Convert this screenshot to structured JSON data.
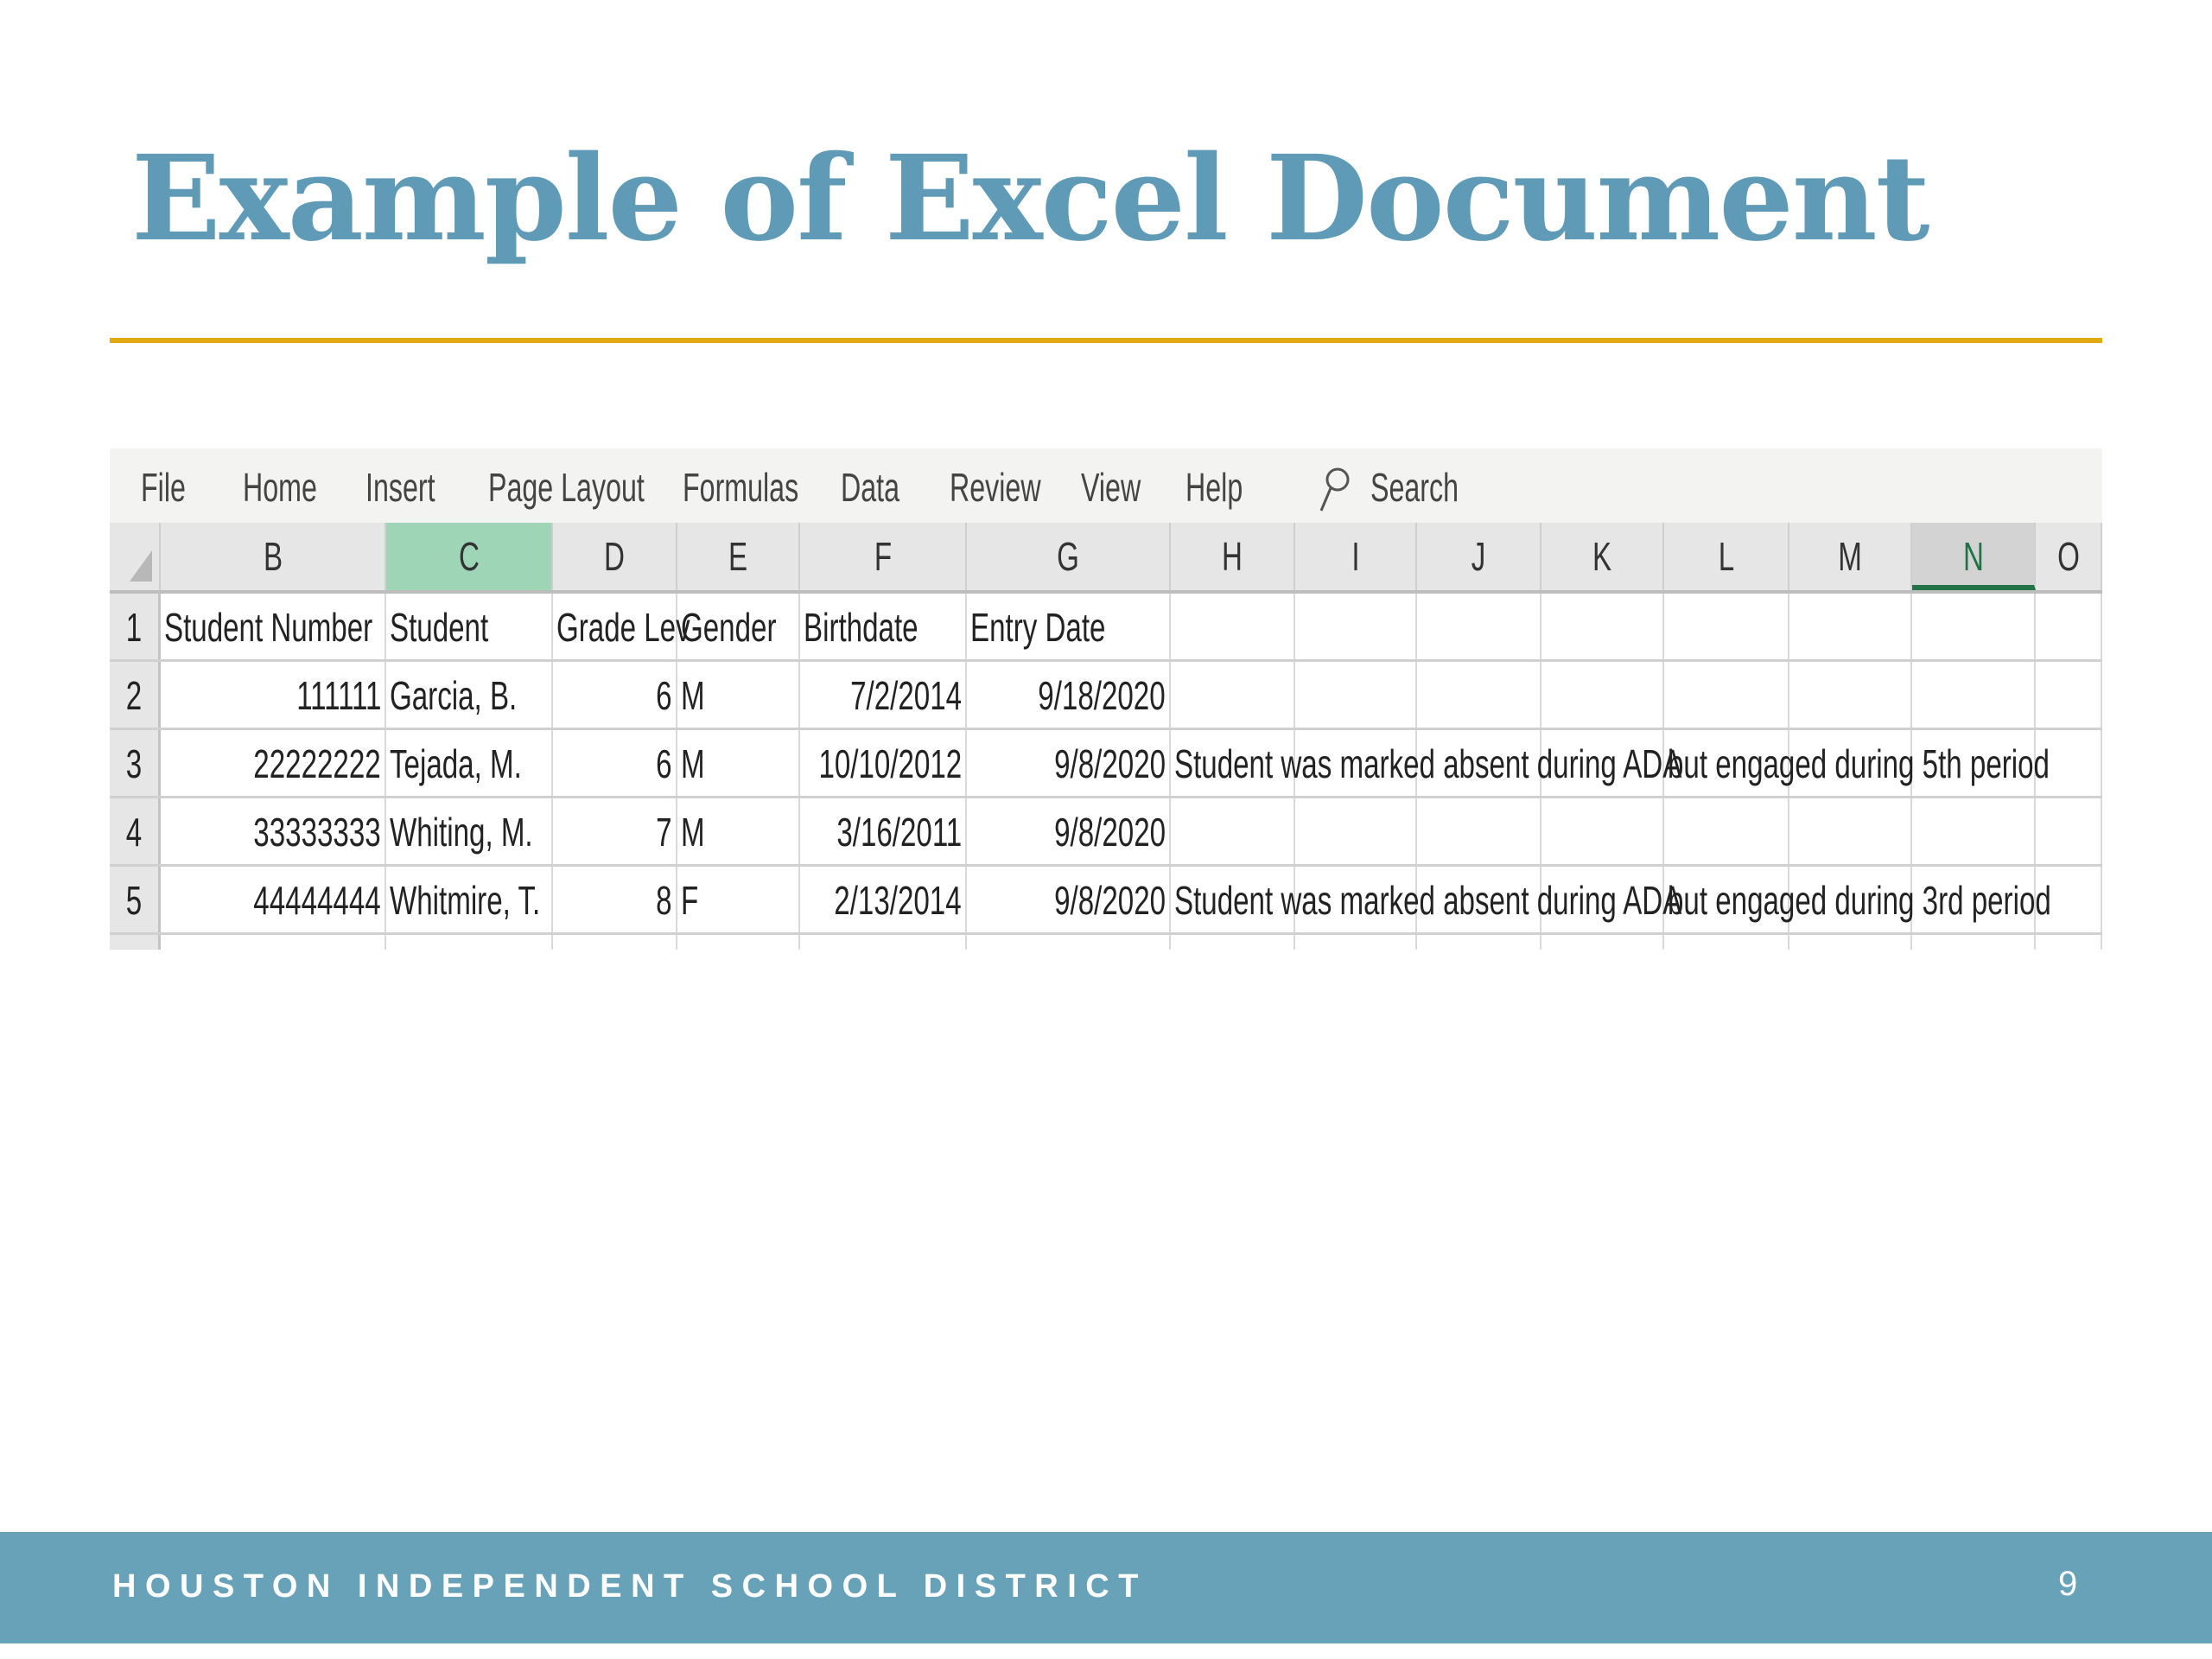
{
  "slide": {
    "title": "Example of Excel Document",
    "footer": "HOUSTON INDEPENDENT SCHOOL DISTRICT",
    "page_number": "9",
    "colors": {
      "title": "#5f9bb6",
      "rule": "#e1a912",
      "footer": "#67a2b8",
      "selected_col": "#9fd5b7",
      "excel_green": "#217346"
    }
  },
  "excel": {
    "menu": [
      "File",
      "Home",
      "Insert",
      "Page Layout",
      "Formulas",
      "Data",
      "Review",
      "View",
      "Help"
    ],
    "search_label": "Search",
    "search_icon": "search-icon",
    "columns": [
      "B",
      "C",
      "D",
      "E",
      "F",
      "G",
      "H",
      "I",
      "J",
      "K",
      "L",
      "M",
      "N",
      "O"
    ],
    "selected_column": "C",
    "active_column": "N",
    "rows": [
      {
        "num": "1",
        "cells": [
          "Student Number",
          "Student",
          "Grade Lev",
          "Gender",
          "Birthdate",
          "Entry Date",
          "",
          "",
          "",
          "",
          "",
          "",
          "",
          ""
        ]
      },
      {
        "num": "2",
        "cells": [
          "111111",
          "Garcia, B.",
          "6",
          "M",
          "7/2/2014",
          "9/18/2020",
          "",
          "",
          "",
          "",
          "",
          "",
          "",
          ""
        ]
      },
      {
        "num": "3",
        "cells": [
          "22222222",
          "Tejada, M.",
          "6",
          "M",
          "10/10/2012",
          "9/8/2020",
          "Student was marked absent during ADA",
          "",
          "",
          "",
          "but engaged during 5th period",
          "",
          "",
          ""
        ]
      },
      {
        "num": "4",
        "cells": [
          "33333333",
          "Whiting, M.",
          "7",
          "M",
          "3/16/2011",
          "9/8/2020",
          "",
          "",
          "",
          "",
          "",
          "",
          "",
          ""
        ]
      },
      {
        "num": "5",
        "cells": [
          "44444444",
          "Whitmire, T.",
          "8",
          "F",
          "2/13/2014",
          "9/8/2020",
          "Student was marked absent during ADA",
          "",
          "",
          "",
          "but engaged during 3rd period",
          "",
          "",
          ""
        ]
      }
    ]
  }
}
